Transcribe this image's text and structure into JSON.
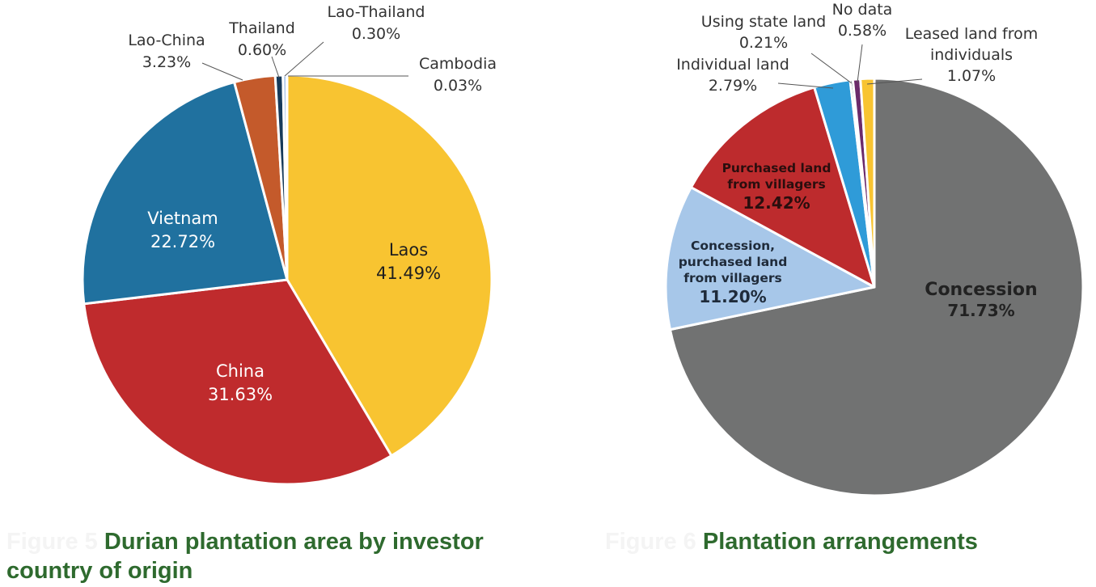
{
  "chart_data": [
    {
      "type": "pie",
      "title": "Durian plantation area by investor country of origin",
      "figure_prefix": "Figure 5",
      "unit": "%",
      "series": [
        {
          "name": "Laos",
          "value": 41.49,
          "label": "41.49%",
          "color": "#f8c431"
        },
        {
          "name": "China",
          "value": 31.63,
          "label": "31.63%",
          "color": "#bf2b2d"
        },
        {
          "name": "Vietnam",
          "value": 22.72,
          "label": "22.72%",
          "color": "#20719f"
        },
        {
          "name": "Lao-China",
          "value": 3.23,
          "label": "3.23%",
          "color": "#c45a2b"
        },
        {
          "name": "Thailand",
          "value": 0.6,
          "label": "0.60%",
          "color": "#163a5a"
        },
        {
          "name": "Lao-Thailand",
          "value": 0.3,
          "label": "0.30%",
          "color": "#a8c3e5"
        },
        {
          "name": "Cambodia",
          "value": 0.03,
          "label": "0.03%",
          "color": "#6b2a6b"
        }
      ]
    },
    {
      "type": "pie",
      "title": "Plantation arrangements",
      "figure_prefix": "Figure 6",
      "unit": "%",
      "series": [
        {
          "name": "Concession",
          "value": 71.73,
          "label": "71.73%",
          "color": "#717272"
        },
        {
          "name": "Concession, purchased land from villagers",
          "lines": [
            "Concession,",
            "purchased land",
            "from villagers"
          ],
          "value": 11.2,
          "label": "11.20%",
          "color": "#a7c7e9"
        },
        {
          "name": "Purchased land from villagers",
          "lines": [
            "Purchased land",
            "from villagers"
          ],
          "value": 12.42,
          "label": "12.42%",
          "color": "#bd2b2d"
        },
        {
          "name": "Individual land",
          "lines": [
            "Individual land"
          ],
          "value": 2.79,
          "label": "2.79%",
          "color": "#2f9bd8"
        },
        {
          "name": "Using state land",
          "lines": [
            "Using state land"
          ],
          "value": 0.21,
          "label": "0.21%",
          "color": "#163a5a"
        },
        {
          "name": "No data",
          "lines": [
            "No data"
          ],
          "value": 0.58,
          "label": "0.58%",
          "color": "#6b2a6b"
        },
        {
          "name": "Leased land from individuals",
          "lines": [
            "Leased land from",
            "individuals"
          ],
          "value": 1.07,
          "label": "1.07%",
          "color": "#f8c431"
        }
      ]
    }
  ]
}
